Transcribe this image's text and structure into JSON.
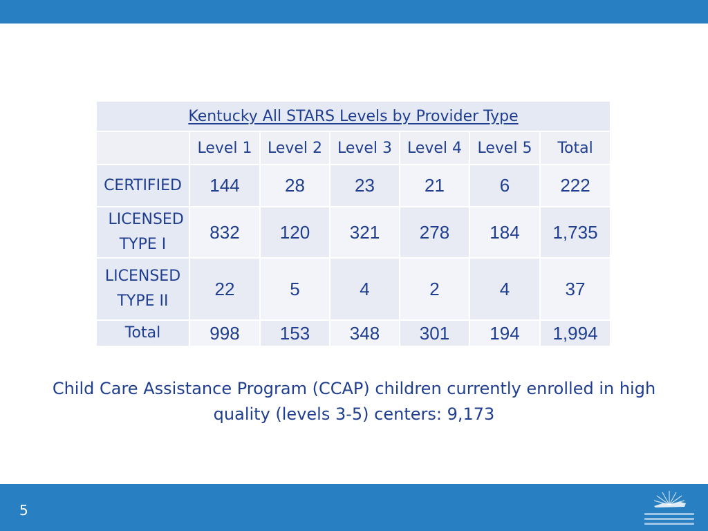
{
  "table": {
    "title": "Kentucky All STARS Levels by Provider Type",
    "columns": [
      "Level 1",
      "Level 2",
      "Level 3",
      "Level 4",
      "Level 5",
      "Total"
    ],
    "rows": [
      {
        "label": "CERTIFIED",
        "values": [
          "144",
          "28",
          "23",
          "21",
          "6",
          "222"
        ]
      },
      {
        "label": "LICENSED TYPE I",
        "values": [
          "832",
          "120",
          "321",
          "278",
          "184",
          "1,735"
        ]
      },
      {
        "label": "LICENSED TYPE II",
        "values": [
          "22",
          "5",
          "4",
          "2",
          "4",
          "37"
        ]
      },
      {
        "label": "Total",
        "values": [
          "998",
          "153",
          "348",
          "301",
          "194",
          "1,994"
        ]
      }
    ]
  },
  "note": "Child Care Assistance Program (CCAP) children currently enrolled in high quality (levels 3-5) centers: 9,173",
  "page_number": "5",
  "colors": {
    "bar": "#2880c3",
    "text": "#1f3e8f"
  }
}
